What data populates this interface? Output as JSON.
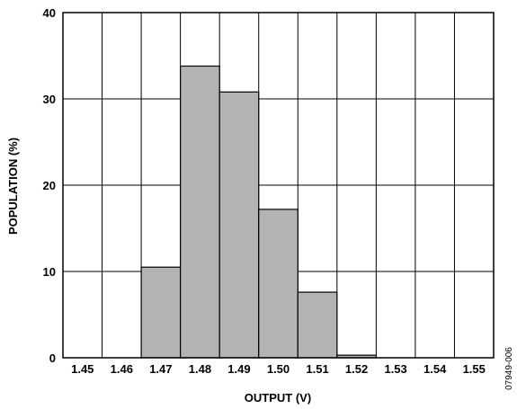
{
  "chart_data": {
    "type": "bar",
    "title": "",
    "xlabel": "OUTPUT (V)",
    "ylabel": "POPULATION (%)",
    "categories": [
      "1.45",
      "1.46",
      "1.47",
      "1.48",
      "1.49",
      "1.50",
      "1.51",
      "1.52",
      "1.53",
      "1.54",
      "1.55"
    ],
    "values": [
      0,
      0,
      10.5,
      33.8,
      30.8,
      17.2,
      7.6,
      0.3,
      0,
      0,
      0
    ],
    "ylim": [
      0,
      40
    ],
    "yticks": [
      "0",
      "10",
      "20",
      "30",
      "40"
    ],
    "grid": true,
    "bar_color": "#b3b3b3",
    "figure_id": "07949-006"
  }
}
